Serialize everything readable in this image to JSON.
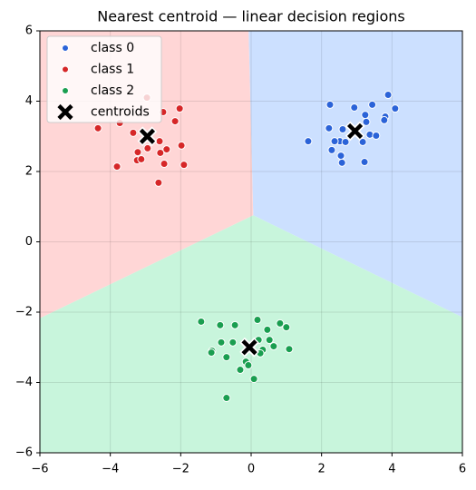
{
  "chart_data": {
    "type": "scatter",
    "title": "Nearest centroid — linear decision regions",
    "xlim": [
      -6,
      6
    ],
    "ylim": [
      -6,
      6
    ],
    "xticks": [
      {
        "value": -6,
        "label": "−6"
      },
      {
        "value": -4,
        "label": "−4"
      },
      {
        "value": -2,
        "label": "−2"
      },
      0,
      2,
      4,
      6
    ],
    "yticks": [
      {
        "value": -6,
        "label": "−6"
      },
      {
        "value": -4,
        "label": "−4"
      },
      {
        "value": -2,
        "label": "−2"
      },
      0,
      2,
      4,
      6
    ],
    "grid": true,
    "legend": "upper left",
    "region_colors": [
      "#cce0ff",
      "#ffd6d6",
      "#c8f5dc"
    ],
    "series": [
      {
        "name": "class 0",
        "color": "#2b63d8",
        "x": [
          3.89,
          4.09,
          3.44,
          2.93,
          2.24,
          3.24,
          3.81,
          3.78,
          3.27,
          2.21,
          2.6,
          3.37,
          3.55,
          2.52,
          2.37,
          1.62,
          2.68,
          3.17,
          2.29,
          2.55,
          2.58,
          3.22
        ],
        "values": [
          4.18,
          3.79,
          3.9,
          3.82,
          3.9,
          3.61,
          3.56,
          3.46,
          3.41,
          3.23,
          3.2,
          3.05,
          3.02,
          2.86,
          2.86,
          2.86,
          2.84,
          2.84,
          2.61,
          2.45,
          2.25,
          2.27
        ]
      },
      {
        "name": "class 1",
        "color": "#d62728",
        "x": [
          -2.96,
          -2.03,
          -2.16,
          -2.5,
          -3.73,
          -4.35,
          -3.35,
          -2.6,
          -1.98,
          -2.4,
          -2.58,
          -3.22,
          -2.94,
          -3.24,
          -3.12,
          -2.47,
          -1.91,
          -3.81,
          -2.63
        ],
        "values": [
          4.1,
          3.79,
          3.43,
          3.69,
          3.38,
          3.23,
          3.1,
          2.86,
          2.74,
          2.63,
          2.53,
          2.55,
          2.66,
          2.32,
          2.35,
          2.22,
          2.19,
          2.14,
          1.68
        ]
      },
      {
        "name": "class 2",
        "color": "#1a9e50",
        "x": [
          -1.42,
          0.18,
          -0.88,
          -0.46,
          0.82,
          1.0,
          0.46,
          0.21,
          0.52,
          -0.85,
          -0.52,
          0.64,
          1.08,
          0.33,
          -1.11,
          -1.13,
          -0.7,
          0.26,
          -0.15,
          -0.08,
          -0.31,
          0.08,
          -0.7
        ],
        "values": [
          -2.27,
          -2.22,
          -2.37,
          -2.37,
          -2.32,
          -2.43,
          -2.5,
          -2.79,
          -2.79,
          -2.86,
          -2.86,
          -2.97,
          -3.05,
          -3.07,
          -3.1,
          -3.15,
          -3.28,
          -3.17,
          -3.41,
          -3.51,
          -3.64,
          -3.9,
          -4.44
        ]
      },
      {
        "name": "centroids",
        "color": "#000000",
        "marker": "x",
        "x": [
          2.95,
          -2.95,
          -0.05
        ],
        "values": [
          3.15,
          3.0,
          -3.0
        ]
      }
    ]
  }
}
